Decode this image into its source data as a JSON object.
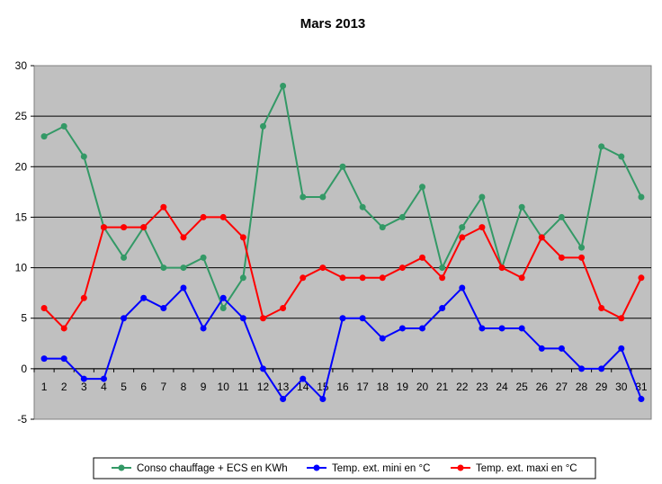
{
  "chart_data": {
    "type": "line",
    "title": "Mars 2013",
    "xlabel": "",
    "ylabel": "",
    "x": [
      1,
      2,
      3,
      4,
      5,
      6,
      7,
      8,
      9,
      10,
      11,
      12,
      13,
      14,
      15,
      16,
      17,
      18,
      19,
      20,
      21,
      22,
      23,
      24,
      25,
      26,
      27,
      28,
      29,
      30,
      31
    ],
    "ylim": [
      -5,
      30
    ],
    "yticks": [
      -5,
      0,
      5,
      10,
      15,
      20,
      25,
      30
    ],
    "grid": "horizontal",
    "legend_position": "bottom",
    "series": [
      {
        "name": "Conso chauffage + ECS en KWh",
        "color": "#339966",
        "values": [
          23,
          24,
          21,
          14,
          11,
          14,
          10,
          10,
          11,
          6,
          9,
          24,
          28,
          17,
          17,
          20,
          16,
          14,
          15,
          18,
          10,
          14,
          17,
          10,
          16,
          13,
          15,
          12,
          22,
          21,
          17
        ]
      },
      {
        "name": "Temp. ext. mini en °C",
        "color": "#0000FF",
        "values": [
          1,
          1,
          -1,
          -1,
          5,
          7,
          6,
          8,
          4,
          7,
          5,
          0,
          -3,
          -1,
          -3,
          5,
          5,
          3,
          4,
          4,
          6,
          8,
          4,
          4,
          4,
          2,
          2,
          0,
          0,
          2,
          -3
        ]
      },
      {
        "name": "Temp. ext. maxi en °C",
        "color": "#FF0000",
        "values": [
          6,
          4,
          7,
          14,
          14,
          14,
          16,
          13,
          15,
          15,
          13,
          5,
          6,
          9,
          10,
          9,
          9,
          9,
          10,
          11,
          9,
          13,
          14,
          10,
          9,
          13,
          11,
          11,
          6,
          5,
          9
        ]
      }
    ],
    "plot_background": "#C0C0C0"
  }
}
